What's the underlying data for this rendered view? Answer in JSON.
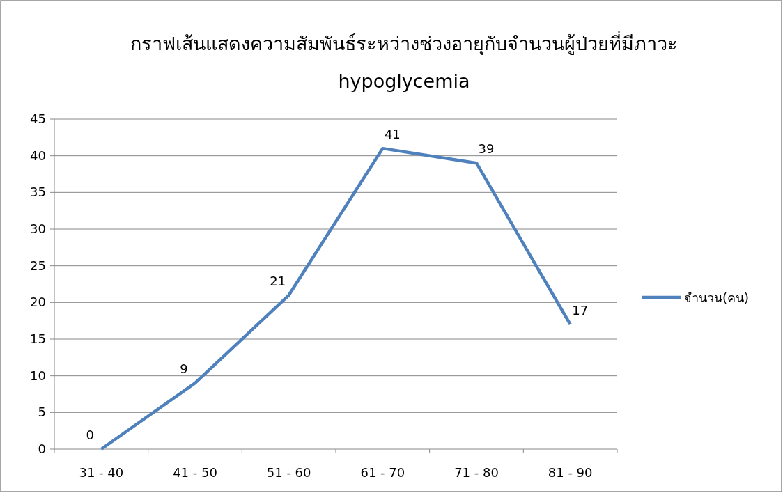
{
  "chart_data": {
    "type": "line",
    "title": "กราฟเส้นแสดงความสัมพันธ์ระหว่างช่วงอายุกับจำนวนผู้ป่วยที่มีภาวะ hypoglycemia",
    "categories": [
      "31 - 40",
      "41 - 50",
      "51 - 60",
      "61 - 70",
      "71 - 80",
      "81 - 90"
    ],
    "series": [
      {
        "name": "จำนวน(คน)",
        "color": "#4f81bd",
        "values": [
          0,
          9,
          21,
          41,
          39,
          17
        ]
      }
    ],
    "ylim": [
      0,
      45
    ],
    "yticks": [
      0,
      5,
      10,
      15,
      20,
      25,
      30,
      35,
      40,
      45
    ],
    "grid": "y",
    "legend": "right",
    "data_labels": true,
    "marker": "none",
    "line_style": "solid"
  }
}
